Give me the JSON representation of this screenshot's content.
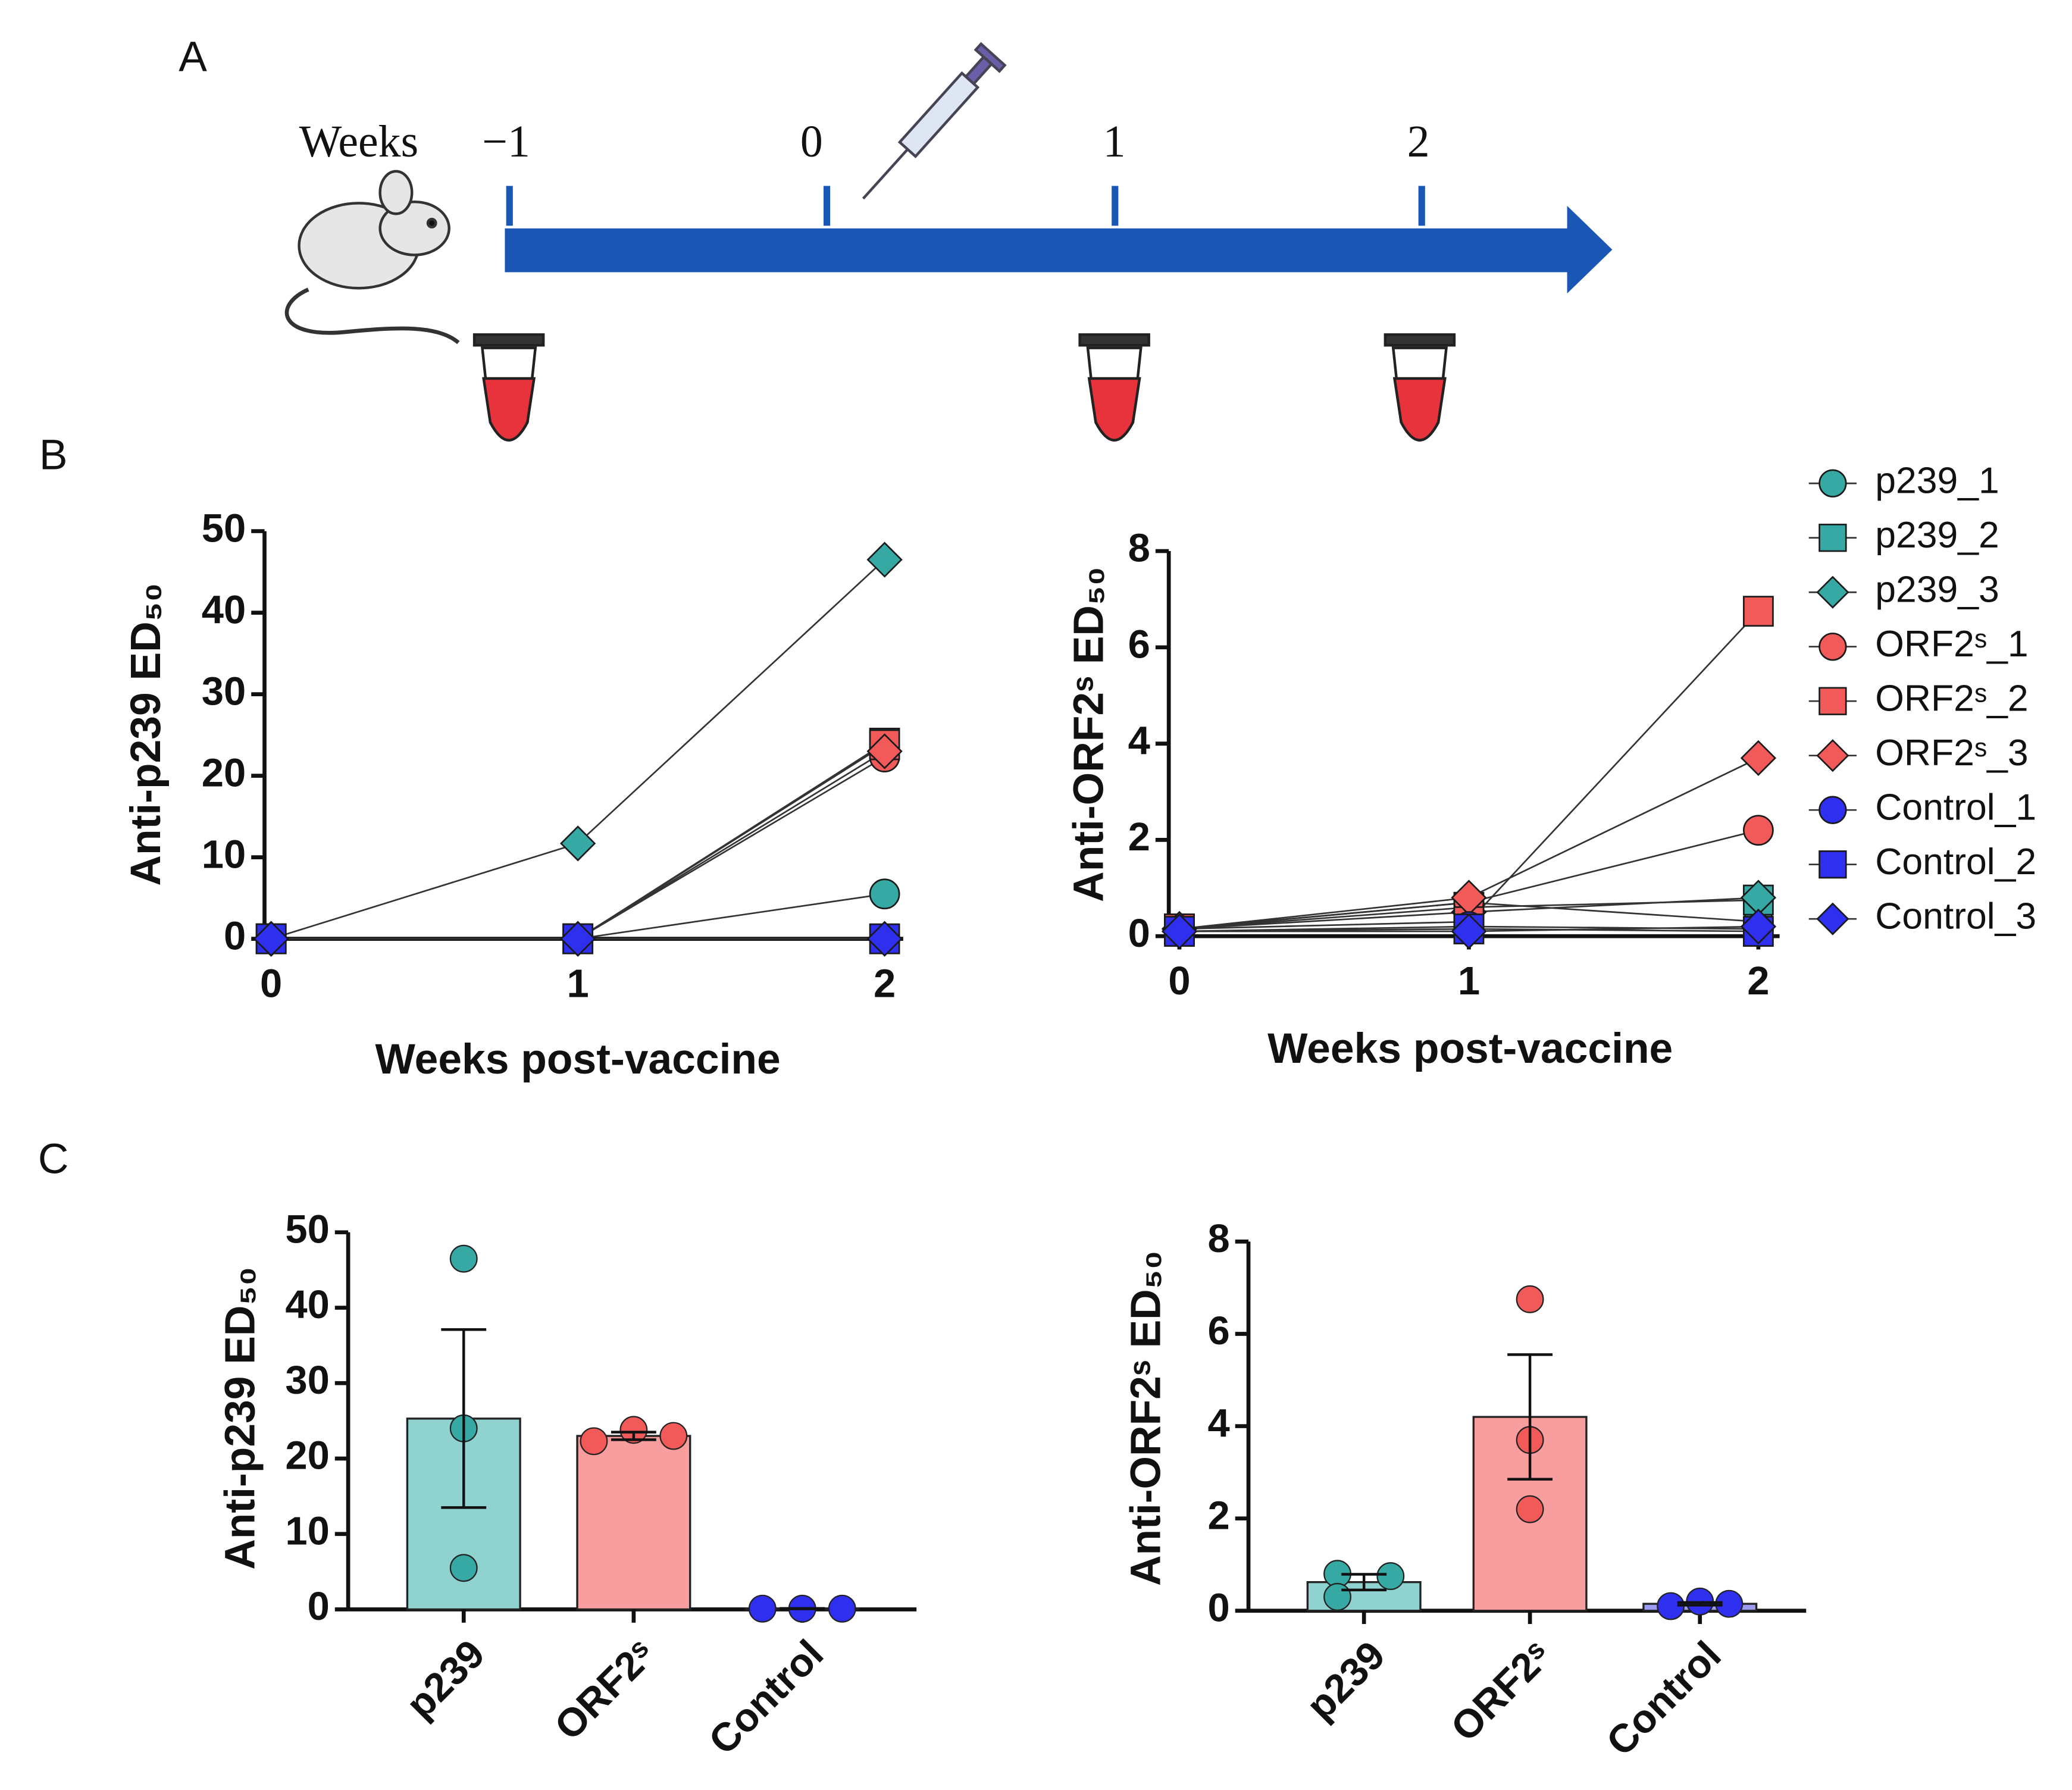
{
  "panels": [
    "A",
    "B",
    "C"
  ],
  "timeline": {
    "unit": "Weeks",
    "ticks": [
      "−1",
      "0",
      "1",
      "2"
    ]
  },
  "chart_data": [
    {
      "type": "line",
      "ylabel": "Anti-p239 ED₅₀",
      "xlabel": "Weeks post-vaccine",
      "x": [
        0,
        1,
        2
      ],
      "xlim": [
        0,
        2
      ],
      "xticks": [
        0,
        1,
        2
      ],
      "ylim": [
        0,
        50
      ],
      "yticks": [
        0,
        10,
        20,
        30,
        40,
        50
      ],
      "series": [
        {
          "color": "#36a9a4",
          "marker": "circle",
          "values": [
            0,
            0,
            5.5
          ]
        },
        {
          "color": "#36a9a4",
          "marker": "square",
          "values": [
            0,
            0,
            24
          ]
        },
        {
          "color": "#36a9a4",
          "marker": "diamond",
          "values": [
            0,
            11.7,
            46.5
          ]
        },
        {
          "color": "#f25a5a",
          "marker": "circle",
          "values": [
            0,
            0,
            22.3
          ]
        },
        {
          "color": "#f25a5a",
          "marker": "square",
          "values": [
            0,
            0,
            23.8
          ]
        },
        {
          "color": "#f25a5a",
          "marker": "diamond",
          "values": [
            0,
            0,
            23
          ]
        },
        {
          "color": "#2f2ff0",
          "marker": "circle",
          "values": [
            0,
            0,
            0
          ]
        },
        {
          "color": "#2f2ff0",
          "marker": "square",
          "values": [
            0,
            0,
            0
          ]
        },
        {
          "color": "#2f2ff0",
          "marker": "diamond",
          "values": [
            0,
            0,
            0
          ]
        }
      ]
    },
    {
      "type": "line",
      "ylabel": "Anti-ORF2ˢ ED₅₀",
      "xlabel": "Weeks post-vaccine",
      "x": [
        0,
        1,
        2
      ],
      "xlim": [
        0,
        2
      ],
      "xticks": [
        0,
        1,
        2
      ],
      "ylim": [
        0,
        8
      ],
      "yticks": [
        0,
        2,
        4,
        6,
        8
      ],
      "legend": "right",
      "series": [
        {
          "name": "p239_1",
          "color": "#36a9a4",
          "marker": "circle",
          "values": [
            0.15,
            0.7,
            0.3
          ]
        },
        {
          "name": "p239_2",
          "color": "#36a9a4",
          "marker": "square",
          "values": [
            0.15,
            0.6,
            0.75
          ]
        },
        {
          "name": "p239_3",
          "color": "#36a9a4",
          "marker": "diamond",
          "values": [
            0.15,
            0.5,
            0.8
          ]
        },
        {
          "name": "ORF2ˢ_1",
          "color": "#f25a5a",
          "marker": "circle",
          "values": [
            0.15,
            0.7,
            2.2
          ]
        },
        {
          "name": "ORF2ˢ_2",
          "color": "#f25a5a",
          "marker": "square",
          "values": [
            0.15,
            0.3,
            6.75
          ]
        },
        {
          "name": "ORF2ˢ_3",
          "color": "#f25a5a",
          "marker": "diamond",
          "values": [
            0.15,
            0.8,
            3.7
          ]
        },
        {
          "name": "Control_1",
          "color": "#2f2ff0",
          "marker": "circle",
          "values": [
            0.1,
            0.2,
            0.15
          ]
        },
        {
          "name": "Control_2",
          "color": "#2f2ff0",
          "marker": "square",
          "values": [
            0.1,
            0.15,
            0.1
          ]
        },
        {
          "name": "Control_3",
          "color": "#2f2ff0",
          "marker": "diamond",
          "values": [
            0.1,
            0.1,
            0.2
          ]
        }
      ]
    },
    {
      "type": "bar",
      "ylabel": "Anti-p239 ED₅₀",
      "categories": [
        "p239",
        "ORF2ˢ",
        "Control"
      ],
      "values": [
        25.3,
        23,
        0.1
      ],
      "errors": [
        11.8,
        0.5,
        0.03
      ],
      "points": [
        [
          46.5,
          24,
          5.5
        ],
        [
          22.3,
          23.8,
          23
        ],
        [
          0.1,
          0.1,
          0.1
        ]
      ],
      "colors": [
        "#8fd2cf",
        "#f89e9e",
        "#9c9cf5"
      ],
      "point_colors": [
        "#36a9a4",
        "#f25a5a",
        "#2f2ff0"
      ],
      "ylim": [
        0,
        50
      ],
      "yticks": [
        0,
        10,
        20,
        30,
        40,
        50
      ]
    },
    {
      "type": "bar",
      "ylabel": "Anti-ORF2ˢ ED₅₀",
      "categories": [
        "p239",
        "ORF2ˢ",
        "Control"
      ],
      "values": [
        0.62,
        4.2,
        0.15
      ],
      "errors": [
        0.17,
        1.35,
        0.03
      ],
      "points": [
        [
          0.8,
          0.3,
          0.75
        ],
        [
          2.2,
          6.75,
          3.7
        ],
        [
          0.1,
          0.2,
          0.15
        ]
      ],
      "colors": [
        "#8fd2cf",
        "#f89e9e",
        "#9c9cf5"
      ],
      "point_colors": [
        "#36a9a4",
        "#f25a5a",
        "#2f2ff0"
      ],
      "ylim": [
        0,
        8
      ],
      "yticks": [
        0,
        2,
        4,
        6,
        8
      ]
    }
  ]
}
